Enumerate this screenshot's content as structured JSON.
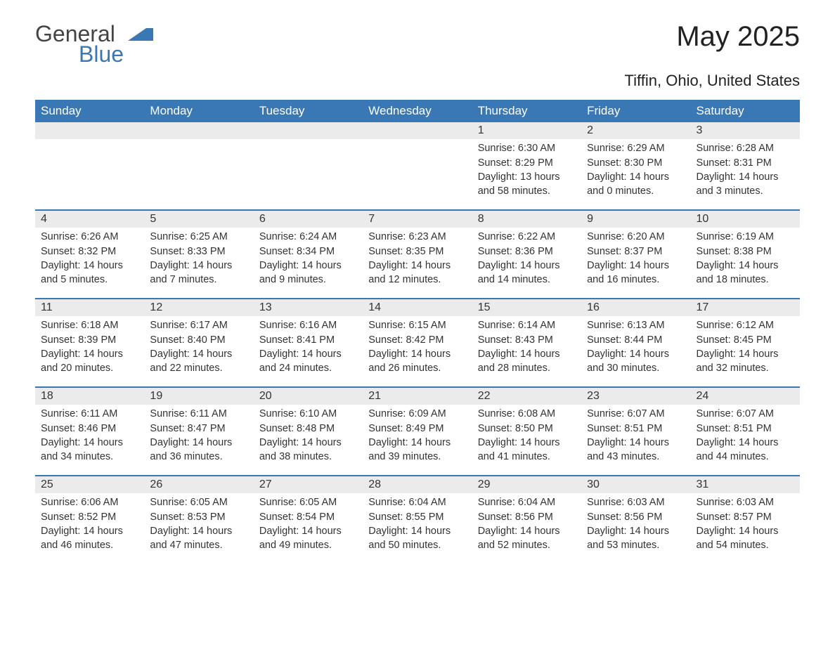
{
  "logo": {
    "general": "General",
    "blue": "Blue",
    "shape_color": "#3a78b5"
  },
  "title": "May 2025",
  "location": "Tiffin, Ohio, United States",
  "colors": {
    "header_bg": "#3a78b5",
    "header_text": "#ffffff",
    "daynum_bg": "#ebebeb",
    "week_border": "#3a78b5",
    "body_text": "#333333",
    "page_bg": "#ffffff"
  },
  "day_headers": [
    "Sunday",
    "Monday",
    "Tuesday",
    "Wednesday",
    "Thursday",
    "Friday",
    "Saturday"
  ],
  "labels": {
    "sunrise": "Sunrise: ",
    "sunset": "Sunset: ",
    "daylight": "Daylight: "
  },
  "weeks": [
    [
      {
        "empty": true
      },
      {
        "empty": true
      },
      {
        "empty": true
      },
      {
        "empty": true
      },
      {
        "day": "1",
        "sunrise": "6:30 AM",
        "sunset": "8:29 PM",
        "daylight": "13 hours and 58 minutes."
      },
      {
        "day": "2",
        "sunrise": "6:29 AM",
        "sunset": "8:30 PM",
        "daylight": "14 hours and 0 minutes."
      },
      {
        "day": "3",
        "sunrise": "6:28 AM",
        "sunset": "8:31 PM",
        "daylight": "14 hours and 3 minutes."
      }
    ],
    [
      {
        "day": "4",
        "sunrise": "6:26 AM",
        "sunset": "8:32 PM",
        "daylight": "14 hours and 5 minutes."
      },
      {
        "day": "5",
        "sunrise": "6:25 AM",
        "sunset": "8:33 PM",
        "daylight": "14 hours and 7 minutes."
      },
      {
        "day": "6",
        "sunrise": "6:24 AM",
        "sunset": "8:34 PM",
        "daylight": "14 hours and 9 minutes."
      },
      {
        "day": "7",
        "sunrise": "6:23 AM",
        "sunset": "8:35 PM",
        "daylight": "14 hours and 12 minutes."
      },
      {
        "day": "8",
        "sunrise": "6:22 AM",
        "sunset": "8:36 PM",
        "daylight": "14 hours and 14 minutes."
      },
      {
        "day": "9",
        "sunrise": "6:20 AM",
        "sunset": "8:37 PM",
        "daylight": "14 hours and 16 minutes."
      },
      {
        "day": "10",
        "sunrise": "6:19 AM",
        "sunset": "8:38 PM",
        "daylight": "14 hours and 18 minutes."
      }
    ],
    [
      {
        "day": "11",
        "sunrise": "6:18 AM",
        "sunset": "8:39 PM",
        "daylight": "14 hours and 20 minutes."
      },
      {
        "day": "12",
        "sunrise": "6:17 AM",
        "sunset": "8:40 PM",
        "daylight": "14 hours and 22 minutes."
      },
      {
        "day": "13",
        "sunrise": "6:16 AM",
        "sunset": "8:41 PM",
        "daylight": "14 hours and 24 minutes."
      },
      {
        "day": "14",
        "sunrise": "6:15 AM",
        "sunset": "8:42 PM",
        "daylight": "14 hours and 26 minutes."
      },
      {
        "day": "15",
        "sunrise": "6:14 AM",
        "sunset": "8:43 PM",
        "daylight": "14 hours and 28 minutes."
      },
      {
        "day": "16",
        "sunrise": "6:13 AM",
        "sunset": "8:44 PM",
        "daylight": "14 hours and 30 minutes."
      },
      {
        "day": "17",
        "sunrise": "6:12 AM",
        "sunset": "8:45 PM",
        "daylight": "14 hours and 32 minutes."
      }
    ],
    [
      {
        "day": "18",
        "sunrise": "6:11 AM",
        "sunset": "8:46 PM",
        "daylight": "14 hours and 34 minutes."
      },
      {
        "day": "19",
        "sunrise": "6:11 AM",
        "sunset": "8:47 PM",
        "daylight": "14 hours and 36 minutes."
      },
      {
        "day": "20",
        "sunrise": "6:10 AM",
        "sunset": "8:48 PM",
        "daylight": "14 hours and 38 minutes."
      },
      {
        "day": "21",
        "sunrise": "6:09 AM",
        "sunset": "8:49 PM",
        "daylight": "14 hours and 39 minutes."
      },
      {
        "day": "22",
        "sunrise": "6:08 AM",
        "sunset": "8:50 PM",
        "daylight": "14 hours and 41 minutes."
      },
      {
        "day": "23",
        "sunrise": "6:07 AM",
        "sunset": "8:51 PM",
        "daylight": "14 hours and 43 minutes."
      },
      {
        "day": "24",
        "sunrise": "6:07 AM",
        "sunset": "8:51 PM",
        "daylight": "14 hours and 44 minutes."
      }
    ],
    [
      {
        "day": "25",
        "sunrise": "6:06 AM",
        "sunset": "8:52 PM",
        "daylight": "14 hours and 46 minutes."
      },
      {
        "day": "26",
        "sunrise": "6:05 AM",
        "sunset": "8:53 PM",
        "daylight": "14 hours and 47 minutes."
      },
      {
        "day": "27",
        "sunrise": "6:05 AM",
        "sunset": "8:54 PM",
        "daylight": "14 hours and 49 minutes."
      },
      {
        "day": "28",
        "sunrise": "6:04 AM",
        "sunset": "8:55 PM",
        "daylight": "14 hours and 50 minutes."
      },
      {
        "day": "29",
        "sunrise": "6:04 AM",
        "sunset": "8:56 PM",
        "daylight": "14 hours and 52 minutes."
      },
      {
        "day": "30",
        "sunrise": "6:03 AM",
        "sunset": "8:56 PM",
        "daylight": "14 hours and 53 minutes."
      },
      {
        "day": "31",
        "sunrise": "6:03 AM",
        "sunset": "8:57 PM",
        "daylight": "14 hours and 54 minutes."
      }
    ]
  ]
}
